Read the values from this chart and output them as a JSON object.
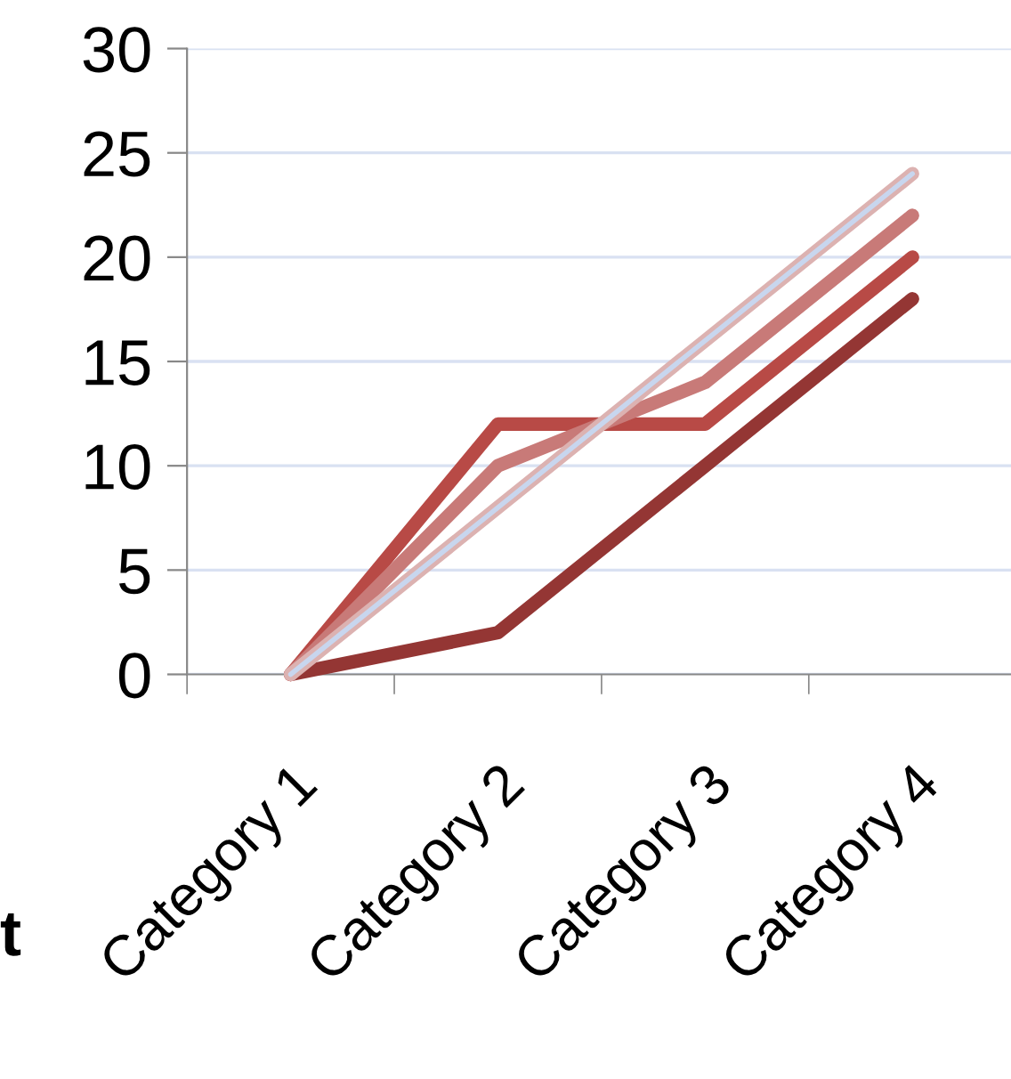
{
  "chart_data": {
    "type": "line",
    "categories": [
      "Category 1",
      "Category 2",
      "Category 3",
      "Category 4"
    ],
    "series": [
      {
        "color": "#943634",
        "values": [
          0,
          2,
          10,
          18
        ]
      },
      {
        "color": "#b84a46",
        "values": [
          0,
          12,
          12,
          20
        ]
      },
      {
        "color": "#c87a78",
        "values": [
          0,
          10,
          14,
          22
        ]
      },
      {
        "color": "#dcb2b1",
        "values": [
          0,
          8,
          16,
          24
        ]
      },
      {
        "color": "#c8d6ee",
        "values": [
          0,
          8,
          16,
          24
        ]
      }
    ],
    "ylim": [
      0,
      30
    ],
    "yticks": [
      0,
      5,
      10,
      15,
      20,
      25,
      30
    ],
    "grid": "y",
    "legend": false,
    "marker": "none",
    "line_style": "solid",
    "annotations": [
      "t"
    ]
  }
}
